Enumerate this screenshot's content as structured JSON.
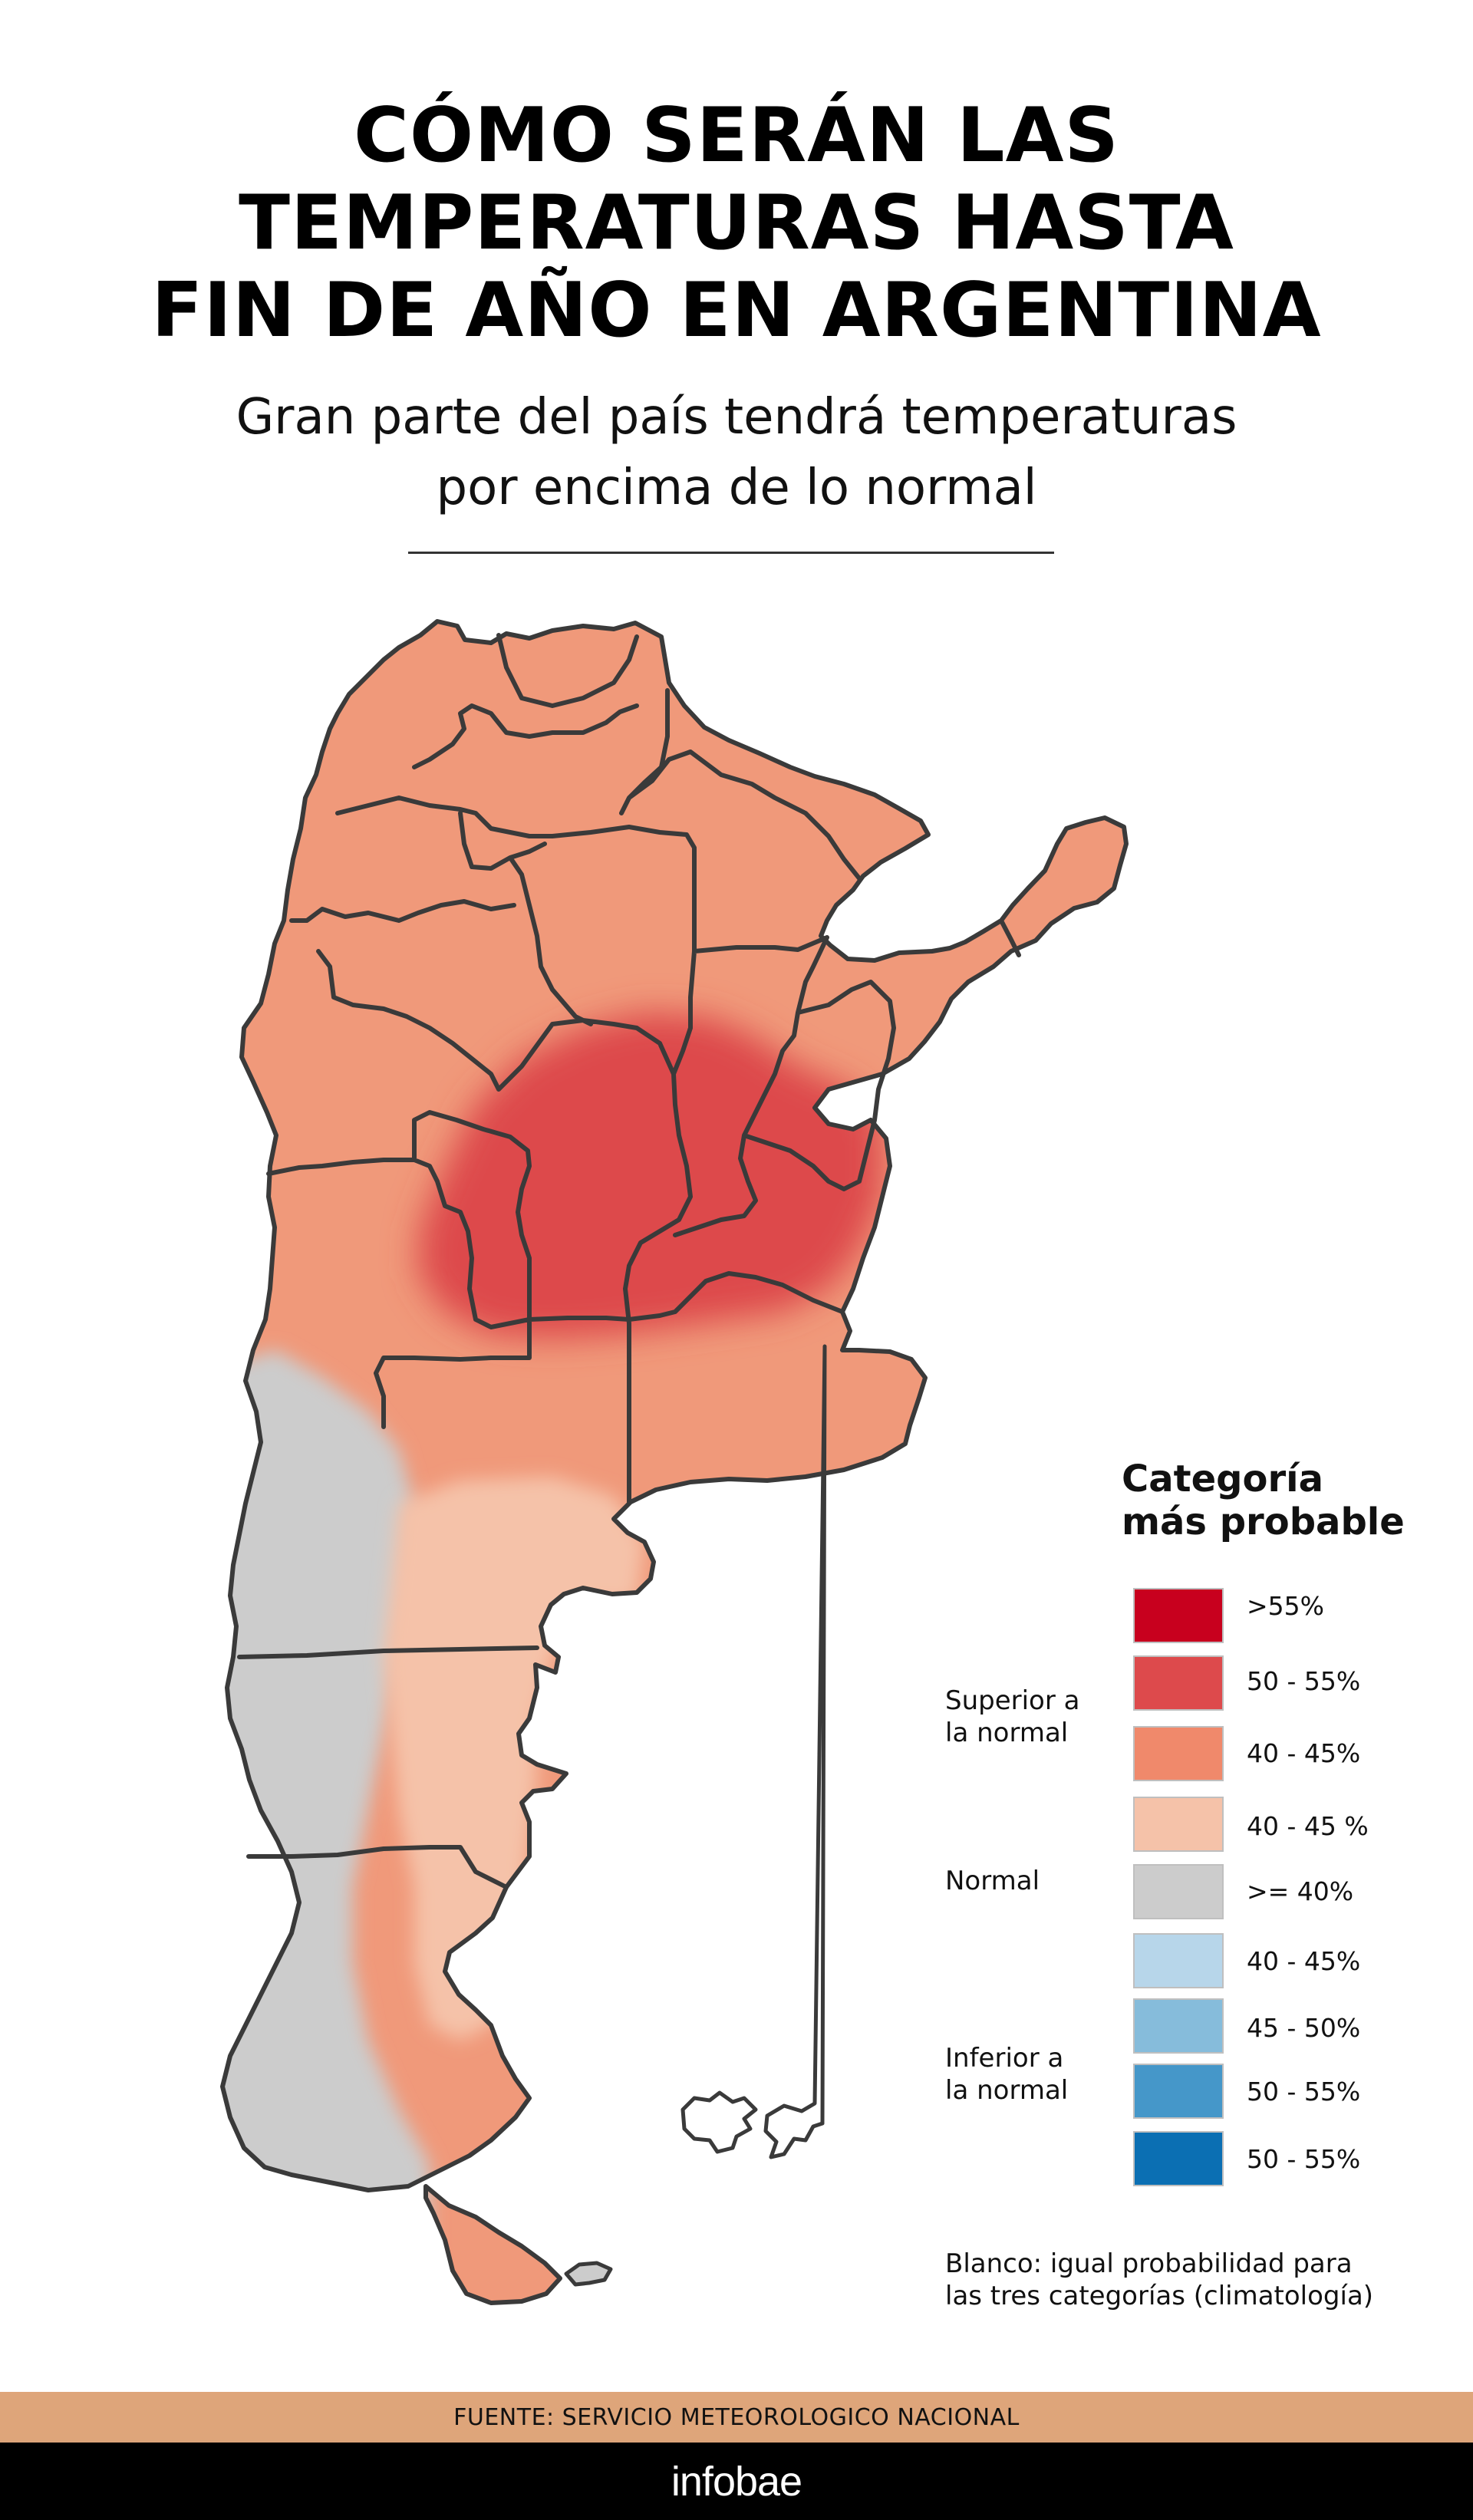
{
  "header": {
    "title_lines": [
      "CÓMO SERÁN LAS",
      "TEMPERATURAS HASTA",
      "FIN DE AÑO EN ARGENTINA"
    ],
    "subtitle_lines": [
      "Gran parte del país tendrá temperaturas",
      "por encima de lo normal"
    ]
  },
  "map": {
    "region": "Argentina",
    "zones": [
      {
        "category": "Superior a la normal",
        "range": "40 - 45%",
        "area": "north and center"
      },
      {
        "category": "Superior a la normal",
        "range": "50 - 55%",
        "area": "core: Córdoba, Santa Fe, north Buenos Aires"
      },
      {
        "category": "Superior a la normal",
        "range": "40 - 45 %",
        "area": "eastern Patagonia"
      },
      {
        "category": "Normal",
        "range": ">= 40%",
        "area": "western Patagonia"
      }
    ]
  },
  "legend": {
    "title_lines": [
      "Categoría",
      "más probable"
    ],
    "items": [
      {
        "label": ">55%",
        "color": "#c8001e",
        "group": "Superior a la normal"
      },
      {
        "label": "50 - 55%",
        "color": "#dd4a4c",
        "group": "Superior a la normal"
      },
      {
        "label": "40 - 45%",
        "color": "#f0896b",
        "group": "Superior a la normal"
      },
      {
        "label": "40 - 45 %",
        "color": "#f5c2a9",
        "group": "Superior a la normal"
      },
      {
        "label": ">= 40%",
        "color": "#cccccc",
        "group": "Normal"
      },
      {
        "label": "40 - 45%",
        "color": "#b7d6ea",
        "group": "Inferior a la normal"
      },
      {
        "label": "45 - 50%",
        "color": "#86bcdb",
        "group": "Inferior a la normal"
      },
      {
        "label": "50 - 55%",
        "color": "#4597c9",
        "group": "Inferior a la normal"
      },
      {
        "label": "50 - 55%",
        "color": "#0b6fb3",
        "group": "Inferior a la normal"
      }
    ],
    "groups": [
      {
        "lines": [
          "Superior a",
          "la normal"
        ]
      },
      {
        "lines": [
          "Normal"
        ]
      },
      {
        "lines": [
          "Inferior a",
          "la normal"
        ]
      }
    ],
    "note_lines": [
      "Blanco: igual probabilidad para",
      "las tres categorías (climatología)"
    ]
  },
  "footer": {
    "source": "FUENTE: SERVICIO METEOROLOGICO NACIONAL",
    "brand": "infobae"
  },
  "colors": {
    "above_40_45": "#f0997a",
    "above_50_55": "#dd4a4c",
    "above_light": "#f5c2a9",
    "normal": "#cccccc",
    "border": "#3a3a3a",
    "source_bar": "#dea57a"
  }
}
